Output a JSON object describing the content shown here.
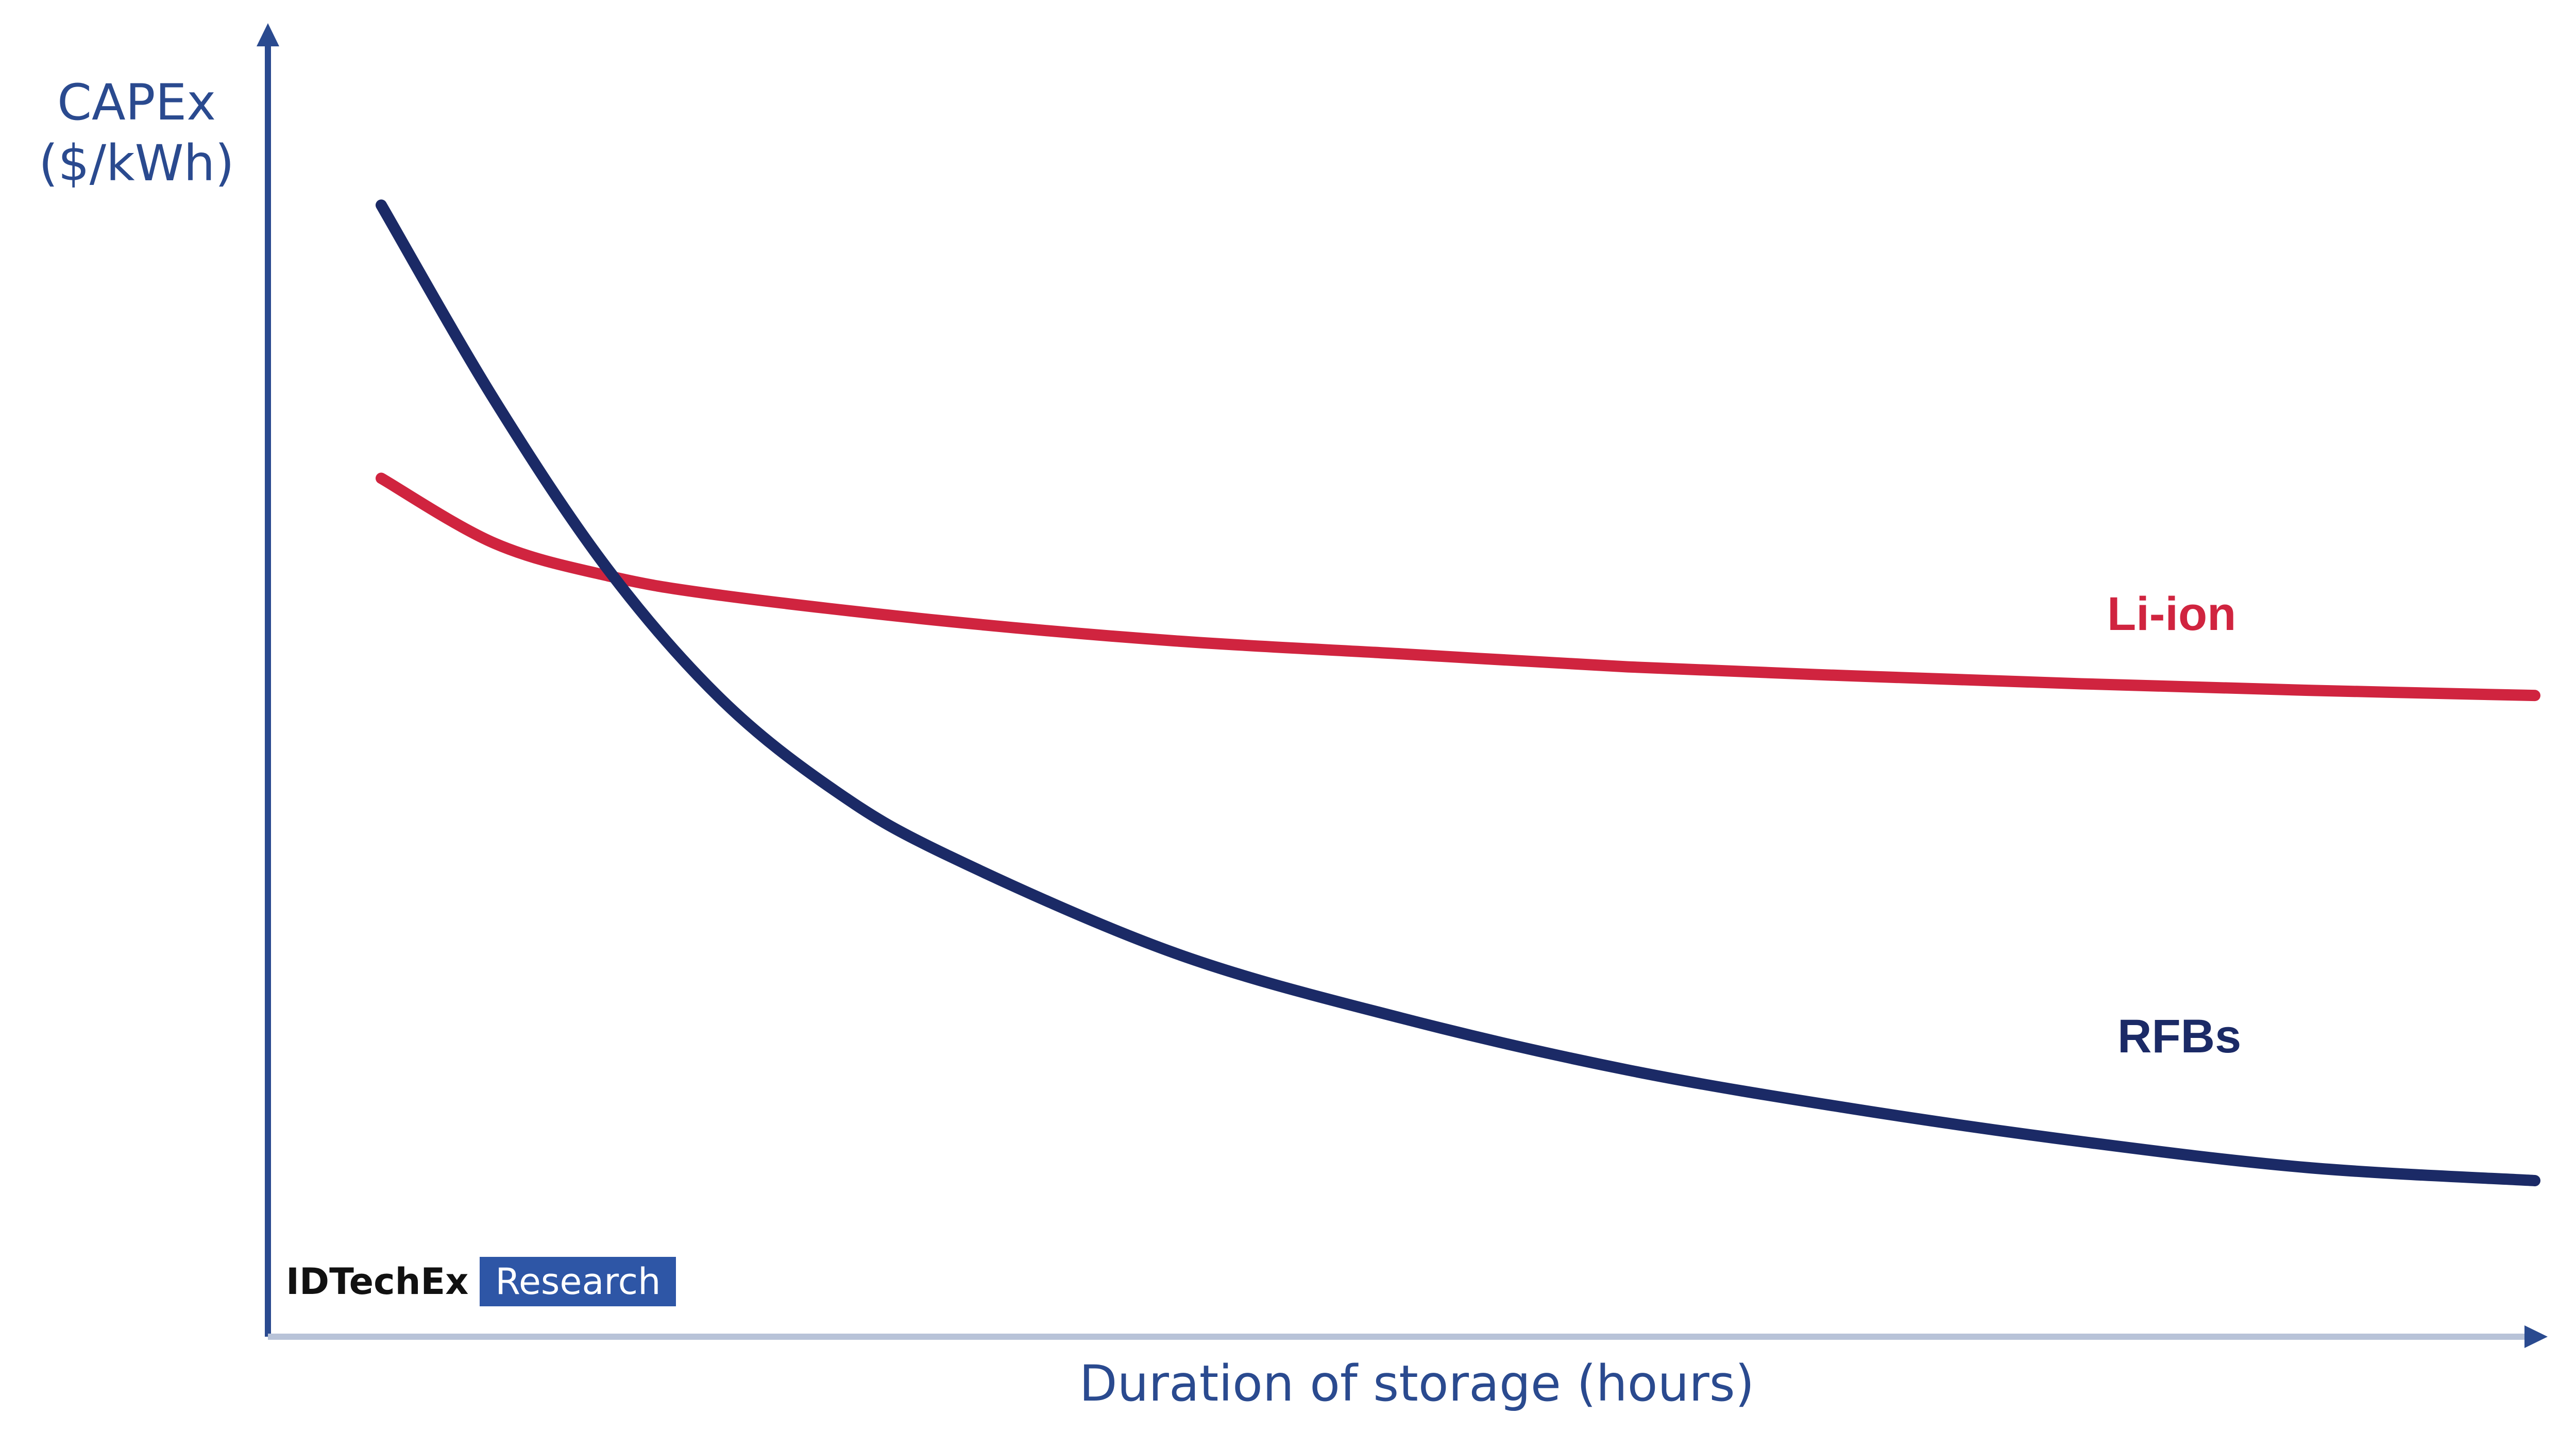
{
  "chart_data": {
    "type": "line",
    "title": "",
    "xlabel": "Duration of storage (hours)",
    "ylabel_lines": [
      "CAPEx",
      "($/kWh)"
    ],
    "grid": false,
    "legend": "inline-labels",
    "xlim": [
      0,
      10
    ],
    "ylim": [
      0,
      10
    ],
    "series": [
      {
        "name": "Li-ion",
        "color": "#d0243f",
        "x": [
          0.5,
          1,
          1.5,
          2,
          3,
          4,
          5,
          6,
          7,
          8,
          9,
          10
        ],
        "y": [
          6.6,
          6.1,
          5.85,
          5.7,
          5.5,
          5.35,
          5.25,
          5.15,
          5.08,
          5.02,
          4.97,
          4.93
        ]
      },
      {
        "name": "RFBs",
        "color": "#1b2a66",
        "x": [
          0.5,
          1,
          1.5,
          2,
          2.5,
          3,
          4,
          5,
          6,
          7,
          8,
          9,
          10
        ],
        "y": [
          8.7,
          7.2,
          5.9,
          4.9,
          4.2,
          3.7,
          2.95,
          2.45,
          2.05,
          1.75,
          1.5,
          1.3,
          1.2
        ]
      }
    ]
  },
  "watermark": {
    "left": "IDTechEx",
    "right": "Research"
  }
}
